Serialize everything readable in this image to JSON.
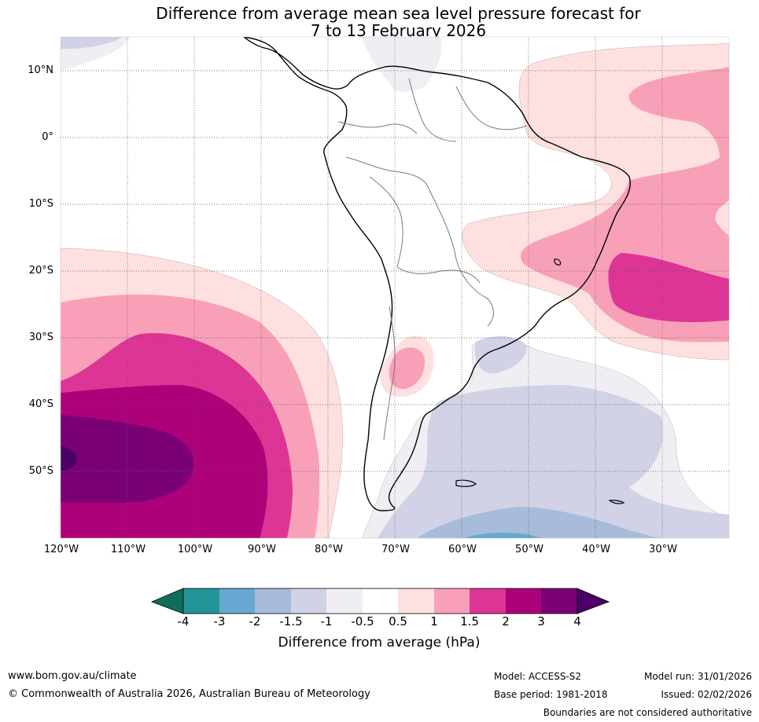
{
  "title": {
    "line1": "Difference from average mean sea level pressure forecast for",
    "line2": "7 to 13 February 2026"
  },
  "map": {
    "region": "South America and surrounding oceans",
    "lat_labels": [
      "10°N",
      "0°",
      "10°S",
      "20°S",
      "30°S",
      "40°S",
      "50°S"
    ],
    "lon_labels": [
      "120°W",
      "110°W",
      "100°W",
      "90°W",
      "80°W",
      "70°W",
      "60°W",
      "50°W",
      "40°W",
      "30°W"
    ]
  },
  "colorbar": {
    "ticks": [
      "-4",
      "-3",
      "-2",
      "-1.5",
      "-1",
      "-0.5",
      "0.5",
      "1",
      "1.5",
      "2",
      "3",
      "4"
    ],
    "colors": {
      "below_min": "#0f6e5c",
      "m4_m3": "#22959a",
      "m3_m2": "#67a8d2",
      "m2_m15": "#a7bcda",
      "m15_m1": "#d1d2e6",
      "m1_m05": "#f0edf3",
      "m05_05": "#ffffff",
      "p05_1": "#fde0df",
      "p1_15": "#f9a0b9",
      "p15_2": "#dd3596",
      "p2_3": "#ad0179",
      "p3_4": "#7a0175",
      "above_max": "#4a0067"
    },
    "label": "Difference from average (hPa)"
  },
  "footer": {
    "website": "www.bom.gov.au/climate",
    "copyright": "© Commonwealth of Australia 2026, Australian Bureau of Meteorology",
    "model": "Model: ACCESS-S2",
    "base_period": "Base period: 1981-2018",
    "model_run": "Model run: 31/01/2026",
    "issued": "Issued: 02/02/2026",
    "disclaimer": "Boundaries are not considered authoritative"
  }
}
